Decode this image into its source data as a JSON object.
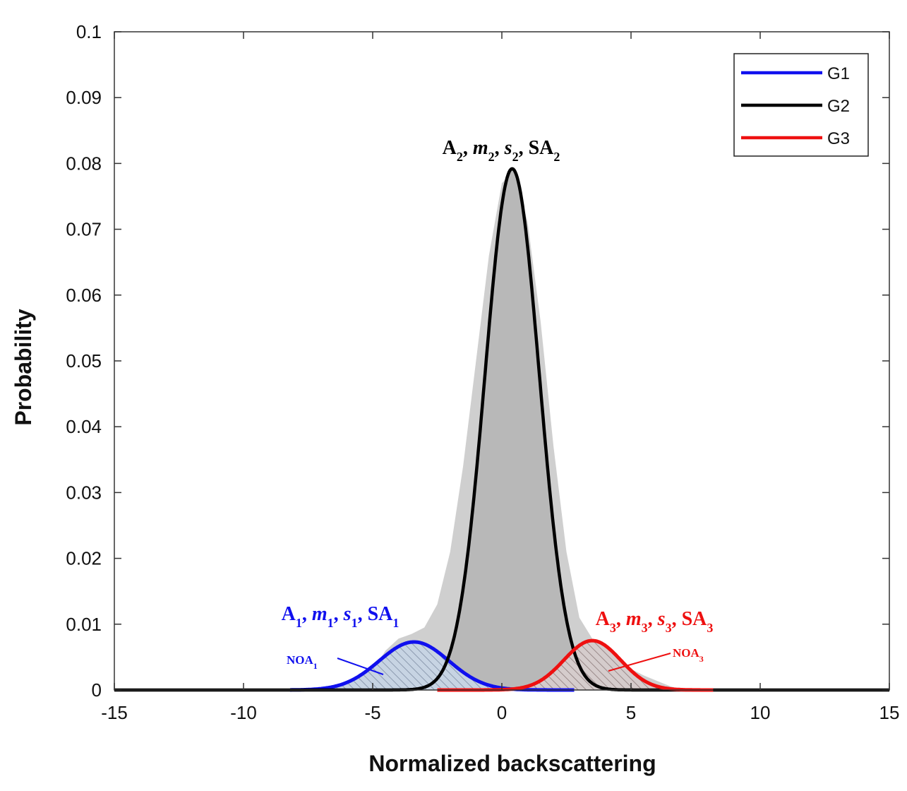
{
  "chart_data": {
    "type": "line",
    "xlabel": "Normalized backscattering",
    "ylabel": "Probability",
    "xlim": [
      -15,
      15
    ],
    "ylim": [
      0,
      0.1
    ],
    "x_ticks": [
      -15,
      -10,
      -5,
      0,
      5,
      10,
      15
    ],
    "x_tick_labels": [
      "-15",
      "-10",
      "-5",
      "0",
      "5",
      "10",
      "15"
    ],
    "y_ticks": [
      0,
      0.01,
      0.02,
      0.03,
      0.04,
      0.05,
      0.06,
      0.07,
      0.08,
      0.09,
      0.1
    ],
    "y_tick_labels": [
      "0",
      "0.01",
      "0.02",
      "0.03",
      "0.04",
      "0.05",
      "0.06",
      "0.07",
      "0.08",
      "0.09",
      "0.1"
    ],
    "grid": false,
    "legend_position": "top-right",
    "series": [
      {
        "name": "G1",
        "color": "#1010ee",
        "amplitude": 0.0073,
        "mean": -3.4,
        "sigma": 1.35,
        "x_range": [
          -8.2,
          2.8
        ]
      },
      {
        "name": "G2",
        "color": "#000000",
        "amplitude": 0.0792,
        "mean": 0.4,
        "sigma": 1.05,
        "x_range": [
          -15,
          15
        ]
      },
      {
        "name": "G3",
        "color": "#ee1010",
        "amplitude": 0.0075,
        "mean": 3.5,
        "sigma": 1.1,
        "x_range": [
          -2.5,
          8.2
        ]
      }
    ],
    "histogram": {
      "color": "#cfcfcf",
      "x": [
        -6,
        -5.5,
        -5,
        -4.5,
        -4,
        -3.5,
        -3,
        -2.5,
        -2,
        -1.5,
        -1,
        -0.5,
        0,
        0.5,
        1,
        1.5,
        2,
        2.5,
        3,
        3.5,
        4,
        4.5,
        5,
        5.5,
        6,
        6.5,
        7
      ],
      "y": [
        0,
        0.001,
        0.003,
        0.006,
        0.0078,
        0.0085,
        0.0095,
        0.013,
        0.021,
        0.034,
        0.05,
        0.066,
        0.077,
        0.079,
        0.071,
        0.056,
        0.037,
        0.021,
        0.011,
        0.0078,
        0.0065,
        0.0045,
        0.0032,
        0.0022,
        0.0014,
        0.0006,
        0
      ]
    },
    "annotations": [
      {
        "id": "g1-params",
        "base": [
          "A",
          ", ",
          "m",
          ", ",
          "s",
          ", SA"
        ],
        "sub": "1",
        "color": "#1010ee",
        "text": "A1, m1, s1, SA1"
      },
      {
        "id": "g2-params",
        "sub": "2",
        "color": "#000000",
        "text": "A2, m2, s2, SA2"
      },
      {
        "id": "g3-params",
        "sub": "3",
        "color": "#ee1010",
        "text": "A3, m3, s3, SA3"
      },
      {
        "id": "noa1",
        "text": "NOA1",
        "label": "NOA",
        "sub": "1",
        "color": "#1010ee"
      },
      {
        "id": "noa3",
        "text": "NOA3",
        "label": "NOA",
        "sub": "3",
        "color": "#ee1010"
      }
    ]
  }
}
